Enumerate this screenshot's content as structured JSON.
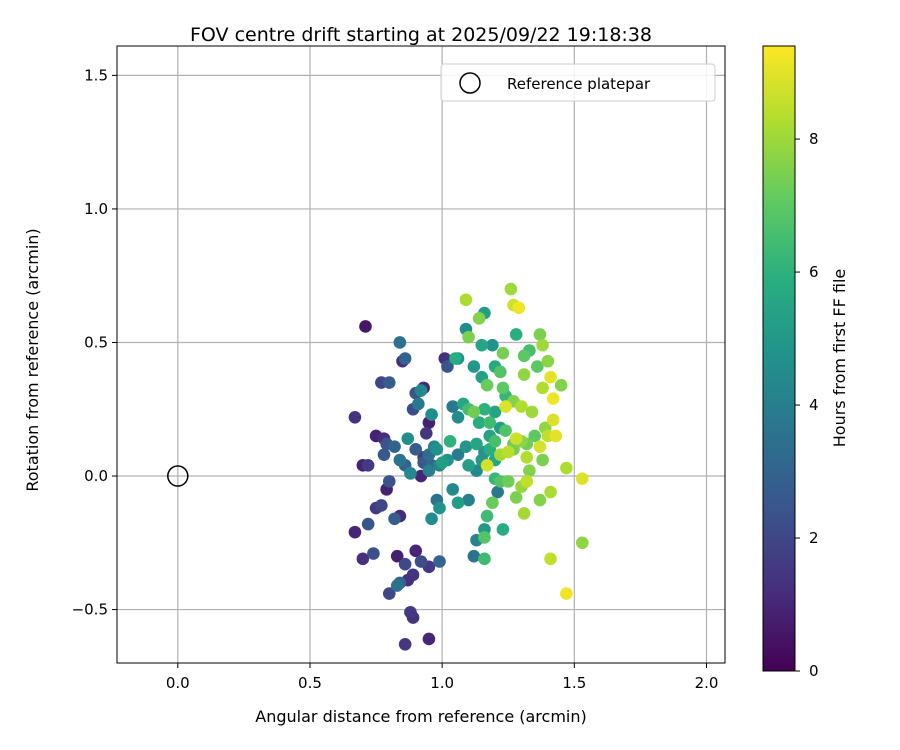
{
  "chart_data": {
    "type": "scatter",
    "title": "FOV centre drift starting at 2025/09/22 19:18:38",
    "xlabel": "Angular distance from reference (arcmin)",
    "ylabel": "Rotation from reference (arcmin)",
    "xlim": [
      -0.23,
      2.07
    ],
    "ylim": [
      -0.7,
      1.61
    ],
    "xticks": [
      0.0,
      0.5,
      1.0,
      1.5,
      2.0
    ],
    "xtick_labels": [
      "0.0",
      "0.5",
      "1.0",
      "1.5",
      "2.0"
    ],
    "yticks": [
      -0.5,
      0.0,
      0.5,
      1.0,
      1.5
    ],
    "ytick_labels": [
      "−0.5",
      "0.0",
      "0.5",
      "1.0",
      "1.5"
    ],
    "grid": true,
    "legend": {
      "position": "top-right",
      "entries": [
        "Reference platepar"
      ]
    },
    "reference_point": {
      "x": 0.0,
      "y": 0.0,
      "marker": "open-circle",
      "color": "#000000"
    },
    "colorbar": {
      "label": "Hours from first FF file",
      "colormap": "viridis",
      "range": [
        0,
        9.4
      ],
      "ticks": [
        0,
        2,
        4,
        6,
        8
      ],
      "tick_labels": [
        "0",
        "2",
        "4",
        "6",
        "8"
      ]
    },
    "points": [
      {
        "x": 0.71,
        "y": 0.56,
        "c": 0.6
      },
      {
        "x": 0.67,
        "y": 0.22,
        "c": 1.4
      },
      {
        "x": 0.85,
        "y": 0.43,
        "c": 1.2
      },
      {
        "x": 0.86,
        "y": 0.44,
        "c": 3.0
      },
      {
        "x": 0.84,
        "y": 0.5,
        "c": 3.5
      },
      {
        "x": 0.77,
        "y": 0.35,
        "c": 2.0
      },
      {
        "x": 0.8,
        "y": 0.35,
        "c": 2.7
      },
      {
        "x": 0.93,
        "y": 0.33,
        "c": 1.0
      },
      {
        "x": 0.9,
        "y": 0.31,
        "c": 2.5
      },
      {
        "x": 0.92,
        "y": 0.32,
        "c": 4.4
      },
      {
        "x": 0.89,
        "y": 0.25,
        "c": 2.2
      },
      {
        "x": 0.91,
        "y": 0.27,
        "c": 3.8
      },
      {
        "x": 0.95,
        "y": 0.2,
        "c": 0.8
      },
      {
        "x": 0.94,
        "y": 0.16,
        "c": 1.5
      },
      {
        "x": 0.96,
        "y": 0.23,
        "c": 4.6
      },
      {
        "x": 0.75,
        "y": 0.15,
        "c": 0.9
      },
      {
        "x": 0.78,
        "y": 0.14,
        "c": 1.2
      },
      {
        "x": 0.79,
        "y": 0.12,
        "c": 2.4
      },
      {
        "x": 0.82,
        "y": 0.11,
        "c": 3.0
      },
      {
        "x": 0.87,
        "y": 0.14,
        "c": 4.6
      },
      {
        "x": 0.93,
        "y": 0.07,
        "c": 1.7
      },
      {
        "x": 0.9,
        "y": 0.1,
        "c": 2.7
      },
      {
        "x": 0.95,
        "y": 0.08,
        "c": 3.4
      },
      {
        "x": 0.98,
        "y": 0.1,
        "c": 4.8
      },
      {
        "x": 0.7,
        "y": 0.04,
        "c": 0.9
      },
      {
        "x": 0.72,
        "y": 0.04,
        "c": 1.6
      },
      {
        "x": 0.78,
        "y": 0.08,
        "c": 2.6
      },
      {
        "x": 0.84,
        "y": 0.06,
        "c": 3.6
      },
      {
        "x": 0.88,
        "y": 0.01,
        "c": 4.4
      },
      {
        "x": 0.92,
        "y": 0.0,
        "c": 1.0
      },
      {
        "x": 0.86,
        "y": 0.04,
        "c": 3.0
      },
      {
        "x": 0.79,
        "y": -0.05,
        "c": 0.9
      },
      {
        "x": 0.8,
        "y": -0.02,
        "c": 2.4
      },
      {
        "x": 0.75,
        "y": -0.12,
        "c": 1.6
      },
      {
        "x": 0.77,
        "y": -0.11,
        "c": 2.0
      },
      {
        "x": 0.82,
        "y": -0.16,
        "c": 2.8
      },
      {
        "x": 0.84,
        "y": -0.15,
        "c": 1.1
      },
      {
        "x": 0.72,
        "y": -0.18,
        "c": 2.5
      },
      {
        "x": 0.67,
        "y": -0.21,
        "c": 1.0
      },
      {
        "x": 0.7,
        "y": -0.31,
        "c": 1.3
      },
      {
        "x": 0.74,
        "y": -0.29,
        "c": 2.3
      },
      {
        "x": 0.83,
        "y": -0.3,
        "c": 0.8
      },
      {
        "x": 0.86,
        "y": -0.33,
        "c": 2.1
      },
      {
        "x": 0.9,
        "y": -0.28,
        "c": 1.0
      },
      {
        "x": 0.87,
        "y": -0.39,
        "c": 1.3
      },
      {
        "x": 0.84,
        "y": -0.4,
        "c": 3.0
      },
      {
        "x": 0.8,
        "y": -0.44,
        "c": 2.0
      },
      {
        "x": 0.83,
        "y": -0.41,
        "c": 3.5
      },
      {
        "x": 0.89,
        "y": -0.37,
        "c": 1.4
      },
      {
        "x": 0.92,
        "y": -0.32,
        "c": 2.2
      },
      {
        "x": 0.95,
        "y": -0.34,
        "c": 1.6
      },
      {
        "x": 0.88,
        "y": -0.51,
        "c": 1.6
      },
      {
        "x": 0.89,
        "y": -0.53,
        "c": 1.4
      },
      {
        "x": 0.86,
        "y": -0.63,
        "c": 1.5
      },
      {
        "x": 0.95,
        "y": -0.61,
        "c": 1.0
      },
      {
        "x": 0.99,
        "y": -0.32,
        "c": 3.0
      },
      {
        "x": 0.96,
        "y": -0.16,
        "c": 4.5
      },
      {
        "x": 0.98,
        "y": -0.09,
        "c": 3.5
      },
      {
        "x": 0.99,
        "y": -0.12,
        "c": 4.8
      },
      {
        "x": 1.01,
        "y": 0.44,
        "c": 1.3
      },
      {
        "x": 1.02,
        "y": 0.41,
        "c": 2.5
      },
      {
        "x": 1.05,
        "y": 0.44,
        "c": 5.8
      },
      {
        "x": 1.06,
        "y": 0.44,
        "c": 4.8
      },
      {
        "x": 1.09,
        "y": 0.55,
        "c": 4.6
      },
      {
        "x": 1.1,
        "y": 0.52,
        "c": 7.5
      },
      {
        "x": 1.09,
        "y": 0.66,
        "c": 8.2
      },
      {
        "x": 1.14,
        "y": 0.59,
        "c": 7.6
      },
      {
        "x": 1.16,
        "y": 0.61,
        "c": 5.2
      },
      {
        "x": 1.15,
        "y": 0.49,
        "c": 5.5
      },
      {
        "x": 1.12,
        "y": 0.41,
        "c": 5.0
      },
      {
        "x": 1.15,
        "y": 0.37,
        "c": 5.3
      },
      {
        "x": 1.17,
        "y": 0.34,
        "c": 7.2
      },
      {
        "x": 1.19,
        "y": 0.49,
        "c": 4.8
      },
      {
        "x": 1.2,
        "y": 0.41,
        "c": 5.7
      },
      {
        "x": 1.22,
        "y": 0.39,
        "c": 6.8
      },
      {
        "x": 1.23,
        "y": 0.46,
        "c": 7.4
      },
      {
        "x": 1.26,
        "y": 0.7,
        "c": 8.0
      },
      {
        "x": 1.27,
        "y": 0.64,
        "c": 8.7
      },
      {
        "x": 1.29,
        "y": 0.63,
        "c": 9.2
      },
      {
        "x": 1.28,
        "y": 0.53,
        "c": 5.9
      },
      {
        "x": 1.31,
        "y": 0.45,
        "c": 7.0
      },
      {
        "x": 1.33,
        "y": 0.47,
        "c": 6.5
      },
      {
        "x": 1.37,
        "y": 0.53,
        "c": 7.5
      },
      {
        "x": 1.38,
        "y": 0.49,
        "c": 8.0
      },
      {
        "x": 1.4,
        "y": 0.43,
        "c": 7.7
      },
      {
        "x": 1.36,
        "y": 0.41,
        "c": 7.0
      },
      {
        "x": 1.41,
        "y": 0.37,
        "c": 9.0
      },
      {
        "x": 1.45,
        "y": 0.34,
        "c": 7.6
      },
      {
        "x": 1.38,
        "y": 0.33,
        "c": 8.3
      },
      {
        "x": 1.42,
        "y": 0.29,
        "c": 9.2
      },
      {
        "x": 1.31,
        "y": 0.38,
        "c": 7.8
      },
      {
        "x": 1.23,
        "y": 0.33,
        "c": 7.0
      },
      {
        "x": 1.24,
        "y": 0.3,
        "c": 6.2
      },
      {
        "x": 1.27,
        "y": 0.28,
        "c": 7.6
      },
      {
        "x": 1.3,
        "y": 0.26,
        "c": 8.3
      },
      {
        "x": 1.24,
        "y": 0.26,
        "c": 8.9
      },
      {
        "x": 1.34,
        "y": 0.24,
        "c": 8.0
      },
      {
        "x": 1.42,
        "y": 0.21,
        "c": 8.9
      },
      {
        "x": 1.39,
        "y": 0.18,
        "c": 7.8
      },
      {
        "x": 1.43,
        "y": 0.15,
        "c": 9.0
      },
      {
        "x": 1.04,
        "y": 0.26,
        "c": 3.8
      },
      {
        "x": 1.06,
        "y": 0.22,
        "c": 4.5
      },
      {
        "x": 1.08,
        "y": 0.27,
        "c": 5.6
      },
      {
        "x": 1.1,
        "y": 0.25,
        "c": 6.5
      },
      {
        "x": 1.12,
        "y": 0.24,
        "c": 7.3
      },
      {
        "x": 1.16,
        "y": 0.25,
        "c": 6.0
      },
      {
        "x": 1.14,
        "y": 0.2,
        "c": 5.8
      },
      {
        "x": 1.18,
        "y": 0.2,
        "c": 6.4
      },
      {
        "x": 1.2,
        "y": 0.24,
        "c": 5.5
      },
      {
        "x": 1.22,
        "y": 0.18,
        "c": 5.2
      },
      {
        "x": 1.18,
        "y": 0.15,
        "c": 5.4
      },
      {
        "x": 1.24,
        "y": 0.17,
        "c": 6.8
      },
      {
        "x": 1.27,
        "y": 0.12,
        "c": 7.2
      },
      {
        "x": 1.28,
        "y": 0.14,
        "c": 8.7
      },
      {
        "x": 1.3,
        "y": 0.13,
        "c": 7.7
      },
      {
        "x": 1.32,
        "y": 0.12,
        "c": 7.3
      },
      {
        "x": 1.35,
        "y": 0.15,
        "c": 7.0
      },
      {
        "x": 1.37,
        "y": 0.11,
        "c": 8.8
      },
      {
        "x": 1.4,
        "y": 0.15,
        "c": 8.5
      },
      {
        "x": 1.25,
        "y": 0.09,
        "c": 8.4
      },
      {
        "x": 1.27,
        "y": 0.1,
        "c": 7.4
      },
      {
        "x": 1.22,
        "y": 0.08,
        "c": 8.1
      },
      {
        "x": 1.32,
        "y": 0.07,
        "c": 8.3
      },
      {
        "x": 1.38,
        "y": 0.06,
        "c": 7.5
      },
      {
        "x": 1.2,
        "y": 0.06,
        "c": 5.6
      },
      {
        "x": 1.17,
        "y": 0.04,
        "c": 8.8
      },
      {
        "x": 1.15,
        "y": 0.06,
        "c": 5.0
      },
      {
        "x": 1.13,
        "y": 0.02,
        "c": 4.4
      },
      {
        "x": 1.1,
        "y": 0.04,
        "c": 5.3
      },
      {
        "x": 1.09,
        "y": 0.11,
        "c": 4.9
      },
      {
        "x": 1.06,
        "y": 0.08,
        "c": 3.9
      },
      {
        "x": 1.03,
        "y": 0.13,
        "c": 6.0
      },
      {
        "x": 1.0,
        "y": 0.05,
        "c": 5.2
      },
      {
        "x": 1.02,
        "y": 0.06,
        "c": 4.8
      },
      {
        "x": 0.99,
        "y": 0.04,
        "c": 4.2
      },
      {
        "x": 0.96,
        "y": 0.04,
        "c": 3.2
      },
      {
        "x": 1.33,
        "y": 0.02,
        "c": 7.6
      },
      {
        "x": 1.32,
        "y": -0.02,
        "c": 8.5
      },
      {
        "x": 1.3,
        "y": -0.04,
        "c": 7.9
      },
      {
        "x": 1.28,
        "y": -0.08,
        "c": 7.5
      },
      {
        "x": 1.25,
        "y": -0.02,
        "c": 7.3
      },
      {
        "x": 1.22,
        "y": -0.02,
        "c": 6.8
      },
      {
        "x": 1.2,
        "y": -0.01,
        "c": 6.2
      },
      {
        "x": 1.21,
        "y": -0.06,
        "c": 3.7
      },
      {
        "x": 1.19,
        "y": -0.1,
        "c": 7.2
      },
      {
        "x": 1.17,
        "y": -0.15,
        "c": 6.4
      },
      {
        "x": 1.16,
        "y": -0.2,
        "c": 5.0
      },
      {
        "x": 1.16,
        "y": -0.23,
        "c": 6.8
      },
      {
        "x": 1.13,
        "y": -0.24,
        "c": 4.2
      },
      {
        "x": 1.12,
        "y": -0.3,
        "c": 3.6
      },
      {
        "x": 1.16,
        "y": -0.31,
        "c": 6.4
      },
      {
        "x": 1.23,
        "y": -0.2,
        "c": 5.8
      },
      {
        "x": 1.1,
        "y": -0.09,
        "c": 4.1
      },
      {
        "x": 1.04,
        "y": -0.05,
        "c": 4.4
      },
      {
        "x": 1.06,
        "y": -0.1,
        "c": 5.2
      },
      {
        "x": 1.31,
        "y": -0.14,
        "c": 8.1
      },
      {
        "x": 1.37,
        "y": -0.09,
        "c": 7.6
      },
      {
        "x": 1.41,
        "y": -0.06,
        "c": 8.2
      },
      {
        "x": 1.47,
        "y": 0.03,
        "c": 8.2
      },
      {
        "x": 1.53,
        "y": -0.01,
        "c": 8.9
      },
      {
        "x": 1.53,
        "y": -0.25,
        "c": 7.8
      },
      {
        "x": 1.41,
        "y": -0.31,
        "c": 8.5
      },
      {
        "x": 1.47,
        "y": -0.44,
        "c": 9.2
      },
      {
        "x": 1.13,
        "y": 0.12,
        "c": 5.5
      },
      {
        "x": 1.16,
        "y": 0.09,
        "c": 4.8
      },
      {
        "x": 1.18,
        "y": 0.1,
        "c": 5.9
      },
      {
        "x": 1.2,
        "y": 0.13,
        "c": 6.6
      },
      {
        "x": 0.97,
        "y": 0.11,
        "c": 4.2
      },
      {
        "x": 0.95,
        "y": 0.02,
        "c": 4.0
      },
      {
        "x": 0.93,
        "y": 0.05,
        "c": 2.6
      }
    ]
  }
}
